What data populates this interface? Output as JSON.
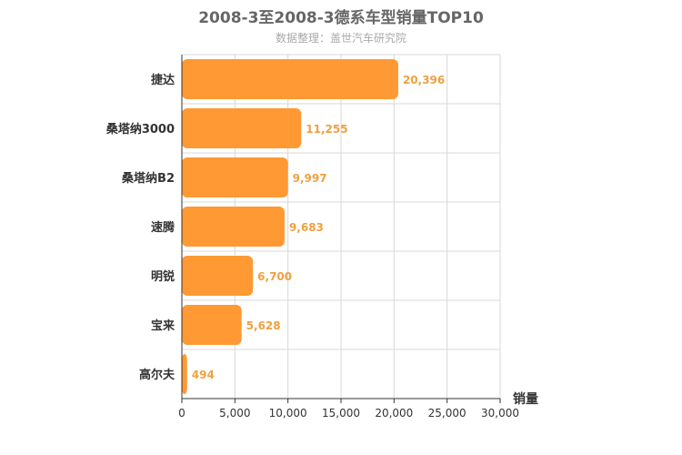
{
  "chart_data": {
    "type": "bar",
    "orientation": "horizontal",
    "title": "2008-3至2008-3德系车型销量TOP10",
    "subtitle": "数据整理：盖世汽车研究院",
    "categories": [
      "捷达",
      "桑塔纳3000",
      "桑塔纳B2",
      "速腾",
      "明锐",
      "宝来",
      "高尔夫"
    ],
    "values": [
      20396,
      11255,
      9997,
      9683,
      6700,
      5628,
      494
    ],
    "value_labels": [
      "20,396",
      "11,255",
      "9,997",
      "9,683",
      "6,700",
      "5,628",
      "494"
    ],
    "xlabel": "销量",
    "ylabel": "",
    "xlim": [
      0,
      30000
    ],
    "xticks": [
      0,
      5000,
      10000,
      15000,
      20000,
      25000,
      30000
    ],
    "xtick_labels": [
      "0",
      "5,000",
      "10,000",
      "15,000",
      "20,000",
      "25,000",
      "30,000"
    ],
    "grid": true,
    "bar_color": "#ff9933",
    "label_color": "#f0a040"
  }
}
